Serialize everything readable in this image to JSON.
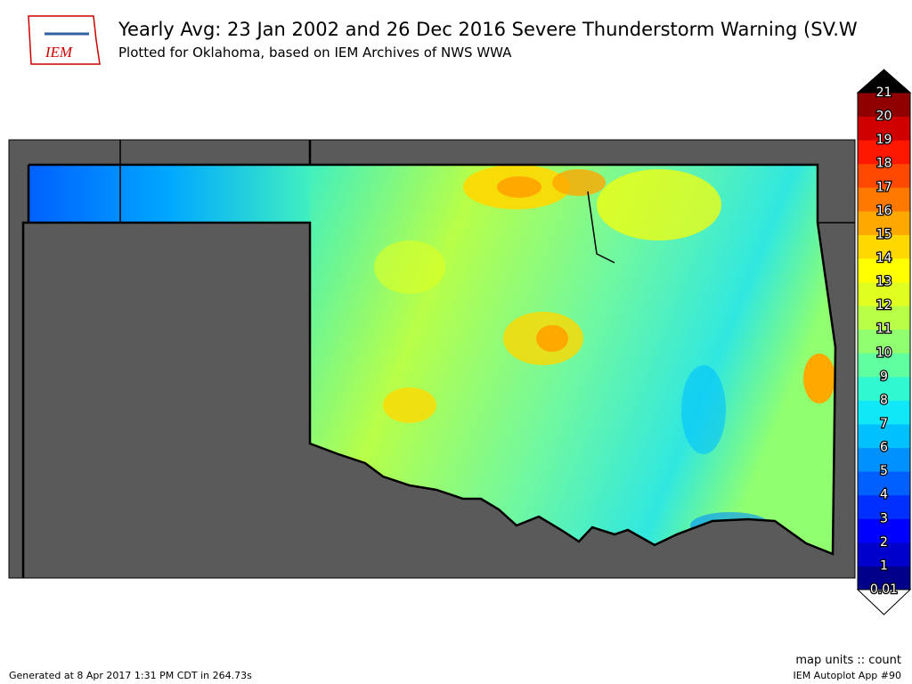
{
  "header": {
    "logo": "IEM",
    "title": "Yearly Avg: 23 Jan 2002 and 26 Dec 2016 Severe Thunderstorm Warning (SV.W",
    "subtitle": "Plotted for Oklahoma, based on IEM Archives of NWS WWA"
  },
  "colorbar": {
    "ticks": [
      0.01,
      1,
      2,
      3,
      4,
      5,
      6,
      7,
      8,
      9,
      10,
      11,
      12,
      13,
      14,
      15,
      16,
      17,
      18,
      19,
      20,
      21
    ],
    "colors": [
      "#00008b",
      "#0000cd",
      "#0000ff",
      "#0030ff",
      "#0060ff",
      "#0090ff",
      "#00c0ff",
      "#10e8f8",
      "#30f8d0",
      "#60ff a0",
      "#90ff70",
      "#b8ff48",
      "#e0ff20",
      "#ffff00",
      "#ffd800",
      "#ffa800",
      "#ff7800",
      "#ff4800",
      "#ff1800",
      "#d00000",
      "#900000"
    ],
    "over_color": "#000000",
    "under_color": "#ffffff"
  },
  "footer": {
    "units": "map units :: count",
    "generated": "Generated at 8 Apr 2017 1:31 PM CDT in 264.73s",
    "app": "IEM Autoplot App #90"
  }
}
